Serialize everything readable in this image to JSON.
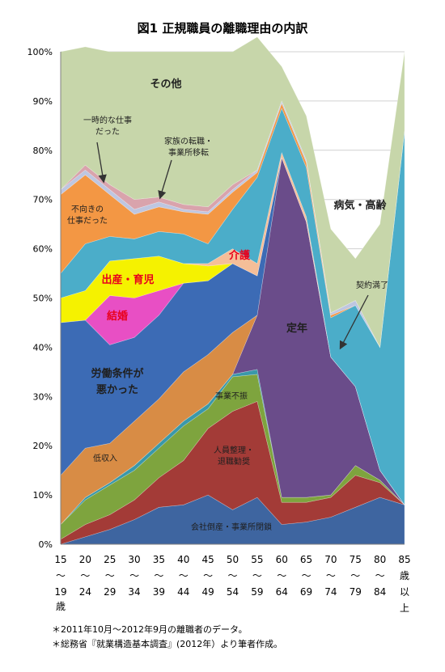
{
  "title": "図1 正規職員の離職理由の内訳",
  "chart_data": {
    "type": "area",
    "stacked": true,
    "percent": true,
    "ylim": [
      0,
      100
    ],
    "y_ticks": [
      "0%",
      "10%",
      "20%",
      "30%",
      "40%",
      "50%",
      "60%",
      "70%",
      "80%",
      "90%",
      "100%"
    ],
    "x_groups": [
      {
        "top": "15",
        "bottom": "19"
      },
      {
        "top": "20",
        "bottom": "24"
      },
      {
        "top": "25",
        "bottom": "29"
      },
      {
        "top": "30",
        "bottom": "34"
      },
      {
        "top": "35",
        "bottom": "39"
      },
      {
        "top": "40",
        "bottom": "44"
      },
      {
        "top": "45",
        "bottom": "49"
      },
      {
        "top": "50",
        "bottom": "54"
      },
      {
        "top": "55",
        "bottom": "59"
      },
      {
        "top": "60",
        "bottom": "64"
      },
      {
        "top": "65",
        "bottom": "69"
      },
      {
        "top": "70",
        "bottom": "74"
      },
      {
        "top": "75",
        "bottom": "79"
      },
      {
        "top": "80",
        "bottom": "84"
      },
      {
        "top": "85",
        "bottom": ""
      }
    ],
    "tilde": "〜",
    "first_suffix": "歳",
    "last_suffix": [
      "歳",
      "以",
      "上"
    ],
    "series": [
      {
        "name": "会社倒産・事業所閉鎖",
        "color": "#3E65A0",
        "values": [
          0,
          1.5,
          3,
          5,
          7.5,
          8,
          10,
          7,
          9.5,
          4,
          4.5,
          5.5,
          7.5,
          9.5,
          8
        ]
      },
      {
        "name": "人員整理・退職勧奨",
        "color": "#A33B37",
        "values": [
          1,
          2.5,
          3,
          4,
          6,
          9,
          13.5,
          20,
          19.5,
          4.5,
          4,
          4,
          6.5,
          3,
          0
        ]
      },
      {
        "name": "事業不振",
        "color": "#7EA43E",
        "values": [
          3,
          5,
          6,
          6,
          6,
          7,
          4,
          7,
          5.5,
          1,
          1,
          0.5,
          2,
          0.5,
          0
        ]
      },
      {
        "name": "契約満了",
        "color": "#3A98AA",
        "values": [
          0,
          0.5,
          0.5,
          1,
          1,
          1,
          1,
          0.5,
          1,
          0,
          0,
          0,
          0,
          0,
          0
        ]
      },
      {
        "name": "定年",
        "color": "#6A4C8A",
        "values": [
          0,
          0,
          0,
          0,
          0,
          0,
          0,
          0,
          11,
          69,
          56,
          28,
          16,
          2,
          0
        ]
      },
      {
        "name": "低収入",
        "color": "#D88C45",
        "values": [
          10,
          10,
          8,
          9,
          9,
          10,
          10,
          8.5,
          0,
          0,
          0,
          0,
          0,
          0,
          0
        ]
      },
      {
        "name": "労働条件が悪かった",
        "color": "#3C6BB5",
        "values": [
          31,
          26,
          20,
          17,
          17,
          18,
          15,
          14,
          8,
          0,
          0,
          0,
          0,
          0,
          0
        ]
      },
      {
        "name": "結婚",
        "color": "#E84FC4",
        "values": [
          0,
          0,
          10,
          8,
          5,
          0,
          0,
          0,
          0,
          0,
          0,
          0,
          0,
          0,
          0
        ]
      },
      {
        "name": "出産・育児",
        "color": "#F5F200",
        "values": [
          5,
          6,
          7,
          8,
          7,
          4,
          3,
          0,
          0,
          0,
          0,
          0,
          0,
          0,
          0
        ]
      },
      {
        "name": "介護",
        "color": "#F5BE98",
        "values": [
          0,
          0,
          0,
          0,
          0,
          0,
          0.5,
          3,
          2.5,
          1,
          1,
          0,
          0,
          0,
          0
        ]
      },
      {
        "name": "病気・高齢",
        "color": "#4BADC9",
        "values": [
          5,
          9.5,
          5,
          4,
          5,
          6,
          4,
          8,
          17.5,
          9,
          10,
          8,
          16.5,
          25,
          76
        ]
      },
      {
        "name": "不向きの仕事だった",
        "color": "#F39744",
        "values": [
          16,
          14,
          8.5,
          5,
          5,
          4.5,
          6,
          3.5,
          1,
          1,
          1,
          0.5,
          0,
          0,
          0
        ]
      },
      {
        "name": "一時的な仕事だった",
        "color": "#BEC6E0",
        "values": [
          1,
          1,
          1,
          1,
          1,
          0.5,
          0.5,
          0.5,
          0.5,
          0.5,
          0.5,
          0.5,
          1,
          0,
          0
        ]
      },
      {
        "name": "家族の転職・事業所移転",
        "color": "#D9A3AC",
        "values": [
          0,
          1,
          1,
          2,
          1,
          1,
          1,
          1,
          0,
          0,
          0,
          0,
          0,
          0,
          0
        ]
      },
      {
        "name": "その他",
        "color": "#C7D6AA",
        "values": [
          28,
          24,
          27,
          30,
          29.5,
          31,
          31.5,
          27,
          27,
          7,
          9,
          17,
          8.5,
          25,
          16
        ]
      }
    ],
    "annotations": [
      {
        "lines": [
          "その他"
        ],
        "style": "big"
      },
      {
        "lines": [
          "一時的な仕事",
          "だった"
        ],
        "style": "small"
      },
      {
        "lines": [
          "家族の転職・",
          "事業所移転"
        ],
        "style": "small"
      },
      {
        "lines": [
          "不向きの",
          "仕事だった"
        ],
        "style": "small"
      },
      {
        "lines": [
          "病気・高齢"
        ],
        "style": "big"
      },
      {
        "lines": [
          "介護"
        ],
        "style": "red"
      },
      {
        "lines": [
          "出産・育児"
        ],
        "style": "red"
      },
      {
        "lines": [
          "結婚"
        ],
        "style": "red"
      },
      {
        "lines": [
          "契約満了"
        ],
        "style": "small"
      },
      {
        "lines": [
          "定年"
        ],
        "style": "big"
      },
      {
        "lines": [
          "労働条件が",
          "悪かった"
        ],
        "style": "big"
      },
      {
        "lines": [
          "事業不振"
        ],
        "style": "small"
      },
      {
        "lines": [
          "低収入"
        ],
        "style": "small"
      },
      {
        "lines": [
          "人員整理・",
          "退職勧奨"
        ],
        "style": "small"
      },
      {
        "lines": [
          "会社倒産・事業所閉鎖"
        ],
        "style": "small"
      }
    ]
  },
  "notes": [
    "＊2011年10月〜2012年9月の離職者のデータ。",
    "＊総務省『就業構造基本調査』(2012年）より筆者作成。"
  ]
}
